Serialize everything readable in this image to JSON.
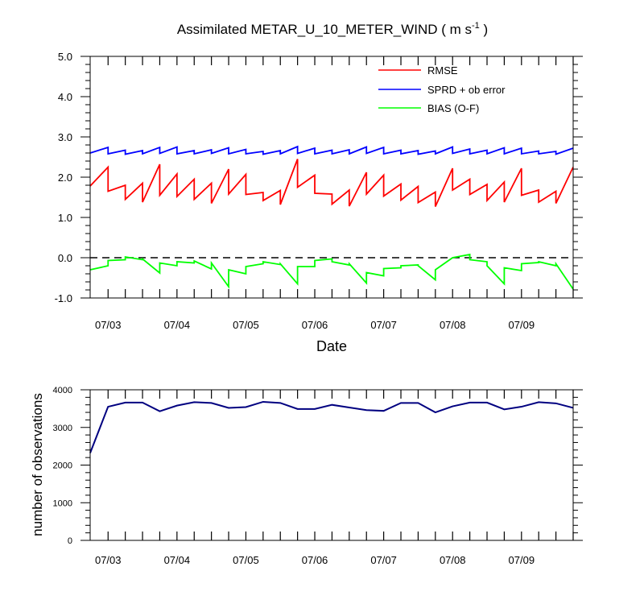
{
  "chart_data": [
    {
      "type": "line",
      "title_main": "Assimilated METAR_U_10_METER_WIND ( m s",
      "title_sup": "-1",
      "title_end": " )",
      "xlabel": "Date",
      "ylabel": "",
      "xlim": [
        2.74,
        9.75
      ],
      "ylim": [
        -1.0,
        5.0
      ],
      "yticks": [
        "5.0",
        "4.0",
        "3.0",
        "2.0",
        "1.0",
        "0.0",
        "-1.0"
      ],
      "xticks": [
        "07/03",
        "07/04",
        "07/05",
        "07/06",
        "07/07",
        "07/08",
        "07/09"
      ],
      "legend_position": "top-right",
      "zero_line": true,
      "series": [
        {
          "name": "RMSE",
          "color": "#ff0000",
          "x": [
            2.74,
            3.0,
            3.0,
            3.25,
            3.25,
            3.5,
            3.5,
            3.75,
            3.75,
            4.0,
            4.0,
            4.25,
            4.25,
            4.5,
            4.5,
            4.75,
            4.75,
            5.0,
            5.0,
            5.25,
            5.25,
            5.5,
            5.5,
            5.75,
            5.75,
            6.0,
            6.0,
            6.25,
            6.25,
            6.5,
            6.5,
            6.75,
            6.75,
            7.0,
            7.0,
            7.25,
            7.25,
            7.5,
            7.5,
            7.75,
            7.75,
            8.0,
            8.0,
            8.25,
            8.25,
            8.5,
            8.5,
            8.75,
            8.75,
            9.0,
            9.0,
            9.25,
            9.25,
            9.5,
            9.5,
            9.75
          ],
          "y": [
            1.78,
            2.25,
            1.65,
            1.8,
            1.45,
            1.85,
            1.38,
            2.32,
            1.55,
            2.08,
            1.52,
            1.95,
            1.45,
            1.85,
            1.35,
            2.2,
            1.58,
            2.07,
            1.57,
            1.62,
            1.42,
            1.67,
            1.32,
            2.45,
            1.75,
            2.05,
            1.6,
            1.58,
            1.33,
            1.68,
            1.28,
            2.12,
            1.58,
            2.05,
            1.53,
            1.83,
            1.43,
            1.77,
            1.37,
            1.63,
            1.27,
            2.22,
            1.68,
            1.95,
            1.57,
            1.82,
            1.42,
            1.88,
            1.38,
            2.22,
            1.55,
            1.68,
            1.38,
            1.65,
            1.35,
            2.25
          ]
        },
        {
          "name": "SPRD + ob error",
          "color": "#0000ff",
          "x": [
            2.74,
            3.0,
            3.0,
            3.25,
            3.25,
            3.5,
            3.5,
            3.75,
            3.75,
            4.0,
            4.0,
            4.25,
            4.25,
            4.5,
            4.5,
            4.75,
            4.75,
            5.0,
            5.0,
            5.25,
            5.25,
            5.5,
            5.5,
            5.75,
            5.75,
            6.0,
            6.0,
            6.25,
            6.25,
            6.5,
            6.5,
            6.75,
            6.75,
            7.0,
            7.0,
            7.25,
            7.25,
            7.5,
            7.5,
            7.75,
            7.75,
            8.0,
            8.0,
            8.25,
            8.25,
            8.5,
            8.5,
            8.75,
            8.75,
            9.0,
            9.0,
            9.25,
            9.25,
            9.5,
            9.5,
            9.75
          ],
          "y": [
            2.6,
            2.74,
            2.58,
            2.67,
            2.57,
            2.66,
            2.58,
            2.74,
            2.59,
            2.75,
            2.58,
            2.66,
            2.58,
            2.68,
            2.59,
            2.73,
            2.58,
            2.69,
            2.58,
            2.64,
            2.57,
            2.66,
            2.58,
            2.76,
            2.59,
            2.72,
            2.58,
            2.67,
            2.58,
            2.68,
            2.58,
            2.75,
            2.59,
            2.74,
            2.58,
            2.67,
            2.58,
            2.66,
            2.57,
            2.65,
            2.58,
            2.75,
            2.59,
            2.7,
            2.58,
            2.67,
            2.58,
            2.73,
            2.58,
            2.72,
            2.58,
            2.65,
            2.58,
            2.64,
            2.57,
            2.72
          ]
        },
        {
          "name": "BIAS (O-F)",
          "color": "#00ff00",
          "x": [
            2.74,
            3.0,
            3.0,
            3.25,
            3.25,
            3.5,
            3.5,
            3.75,
            3.75,
            4.0,
            4.0,
            4.25,
            4.25,
            4.5,
            4.5,
            4.75,
            4.75,
            5.0,
            5.0,
            5.25,
            5.25,
            5.5,
            5.5,
            5.75,
            5.75,
            6.0,
            6.0,
            6.25,
            6.25,
            6.5,
            6.5,
            6.75,
            6.75,
            7.0,
            7.0,
            7.25,
            7.25,
            7.5,
            7.5,
            7.75,
            7.75,
            8.0,
            8.0,
            8.25,
            8.25,
            8.5,
            8.5,
            8.75,
            8.75,
            9.0,
            9.0,
            9.25,
            9.25,
            9.5,
            9.5,
            9.75
          ],
          "y": [
            -0.3,
            -0.2,
            -0.07,
            -0.05,
            0.02,
            -0.05,
            -0.03,
            -0.38,
            -0.13,
            -0.2,
            -0.1,
            -0.13,
            -0.08,
            -0.28,
            -0.13,
            -0.72,
            -0.3,
            -0.4,
            -0.22,
            -0.15,
            -0.1,
            -0.17,
            -0.15,
            -0.65,
            -0.22,
            -0.22,
            -0.07,
            -0.03,
            -0.1,
            -0.18,
            -0.15,
            -0.63,
            -0.37,
            -0.45,
            -0.27,
            -0.25,
            -0.2,
            -0.18,
            -0.2,
            -0.55,
            -0.3,
            0.0,
            0.0,
            0.08,
            -0.05,
            -0.1,
            -0.2,
            -0.65,
            -0.25,
            -0.32,
            -0.15,
            -0.12,
            -0.1,
            -0.2,
            -0.15,
            -0.78
          ]
        }
      ]
    },
    {
      "type": "line",
      "ylabel": "number of observations",
      "xlim": [
        2.74,
        9.75
      ],
      "ylim": [
        0,
        4000
      ],
      "yticks": [
        "4000",
        "3000",
        "2000",
        "1000",
        "0"
      ],
      "xticks": [
        "07/03",
        "07/04",
        "07/05",
        "07/06",
        "07/07",
        "07/08",
        "07/09"
      ],
      "series": [
        {
          "color": "#000080",
          "x": [
            2.74,
            3.0,
            3.25,
            3.5,
            3.75,
            4.0,
            4.25,
            4.5,
            4.75,
            5.0,
            5.25,
            5.5,
            5.75,
            6.0,
            6.25,
            6.5,
            6.75,
            7.0,
            7.25,
            7.5,
            7.75,
            8.0,
            8.25,
            8.5,
            8.75,
            9.0,
            9.25,
            9.5,
            9.75
          ],
          "y": [
            2320,
            3550,
            3660,
            3660,
            3430,
            3580,
            3670,
            3650,
            3520,
            3540,
            3680,
            3650,
            3490,
            3490,
            3600,
            3530,
            3460,
            3440,
            3650,
            3650,
            3400,
            3560,
            3660,
            3660,
            3480,
            3550,
            3670,
            3640,
            3520
          ]
        }
      ]
    }
  ]
}
